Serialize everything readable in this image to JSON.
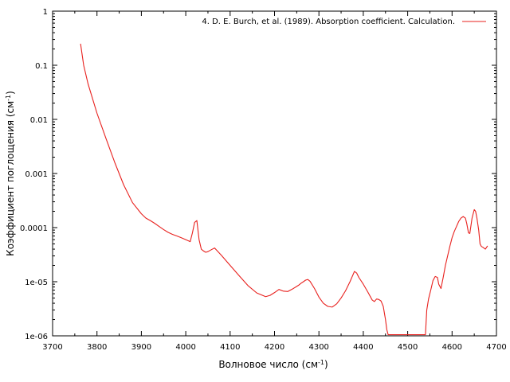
{
  "chart_data": {
    "type": "line",
    "y_scale": "log",
    "xlim": [
      3700,
      4700
    ],
    "ylim": [
      1e-06,
      1
    ],
    "x_ticks": [
      3700,
      3800,
      3900,
      4000,
      4100,
      4200,
      4300,
      4400,
      4500,
      4600,
      4700
    ],
    "x_tick_labels": [
      "3700",
      "3800",
      "3900",
      "4000",
      "4100",
      "4200",
      "4300",
      "4400",
      "4500",
      "4600",
      "4700"
    ],
    "y_ticks": [
      1e-06,
      1e-05,
      0.0001,
      0.001,
      0.01,
      0.1,
      1
    ],
    "y_tick_labels": [
      "1e-06",
      "1e-05",
      "0.0001",
      "0.001",
      "0.01",
      "0.1",
      "1"
    ],
    "xlabel": {
      "main": "Волновое число (см",
      "sup": "-1",
      "end": ")"
    },
    "ylabel": {
      "main": "Коэффициент поглощения (см",
      "sup": "-1",
      "end": ")"
    },
    "grid": false,
    "legend_position": "top-right",
    "colors": {
      "series": "#e8211e",
      "axis": "#000000"
    },
    "series": [
      {
        "name": "4. D. E. Burch, et al. (1989). Absorption coefficient. Calculation.",
        "x": [
          3763,
          3770,
          3780,
          3800,
          3820,
          3840,
          3860,
          3880,
          3900,
          3910,
          3920,
          3930,
          3940,
          3950,
          3960,
          3970,
          3980,
          3990,
          4000,
          4010,
          4015,
          4020,
          4025,
          4030,
          4035,
          4040,
          4045,
          4050,
          4055,
          4060,
          4065,
          4070,
          4080,
          4100,
          4120,
          4140,
          4160,
          4180,
          4190,
          4200,
          4210,
          4220,
          4230,
          4240,
          4250,
          4255,
          4260,
          4265,
          4270,
          4275,
          4280,
          4290,
          4300,
          4310,
          4320,
          4330,
          4340,
          4350,
          4360,
          4370,
          4380,
          4385,
          4390,
          4400,
          4410,
          4420,
          4425,
          4430,
          4435,
          4440,
          4445,
          4450,
          4453,
          4456,
          4460,
          4470,
          4480,
          4490,
          4500,
          4510,
          4520,
          4530,
          4540,
          4543,
          4547,
          4552,
          4557,
          4562,
          4567,
          4570,
          4575,
          4580,
          4585,
          4590,
          4595,
          4600,
          4605,
          4610,
          4615,
          4620,
          4625,
          4630,
          4633,
          4637,
          4640,
          4645,
          4650,
          4653,
          4656,
          4660,
          4663,
          4666,
          4670,
          4675,
          4680
        ],
        "y": [
          0.25,
          0.1,
          0.045,
          0.013,
          0.0045,
          0.0016,
          0.00062,
          0.00029,
          0.00018,
          0.00015,
          0.000135,
          0.00012,
          0.000105,
          9.2e-05,
          8.2e-05,
          7.5e-05,
          7e-05,
          6.5e-05,
          6e-05,
          5.5e-05,
          8e-05,
          0.000125,
          0.000135,
          6e-05,
          4e-05,
          3.7e-05,
          3.5e-05,
          3.6e-05,
          3.8e-05,
          4e-05,
          4.2e-05,
          3.8e-05,
          3.1e-05,
          2e-05,
          1.3e-05,
          8.5e-06,
          6.2e-06,
          5.3e-06,
          5.6e-06,
          6.3e-06,
          7.2e-06,
          6.7e-06,
          6.6e-06,
          7.3e-06,
          8.2e-06,
          8.7e-06,
          9.4e-06,
          1e-05,
          1.07e-05,
          1.1e-05,
          1.02e-05,
          7.5e-06,
          5.2e-06,
          4e-06,
          3.5e-06,
          3.4e-06,
          3.9e-06,
          5e-06,
          6.8e-06,
          1e-05,
          1.55e-05,
          1.45e-05,
          1.2e-05,
          9e-06,
          6.5e-06,
          4.6e-06,
          4.3e-06,
          4.8e-06,
          4.7e-06,
          4.4e-06,
          3.5e-06,
          2e-06,
          1.3e-06,
          1.05e-06,
          1.05e-06,
          1.05e-06,
          1.05e-06,
          1.05e-06,
          1.05e-06,
          1.05e-06,
          1.05e-06,
          1.05e-06,
          1.05e-06,
          3e-06,
          4.8e-06,
          7e-06,
          1.05e-05,
          1.25e-05,
          1.2e-05,
          9e-06,
          7.5e-06,
          1.2e-05,
          2e-05,
          3e-05,
          4.5e-05,
          6.5e-05,
          8.5e-05,
          0.000105,
          0.00013,
          0.00015,
          0.00016,
          0.00015,
          0.00012,
          8e-05,
          7.8e-05,
          0.00015,
          0.000215,
          0.0002,
          0.00015,
          9e-05,
          5e-05,
          4.5e-05,
          4.3e-05,
          4e-05,
          4.6e-05
        ]
      }
    ]
  }
}
